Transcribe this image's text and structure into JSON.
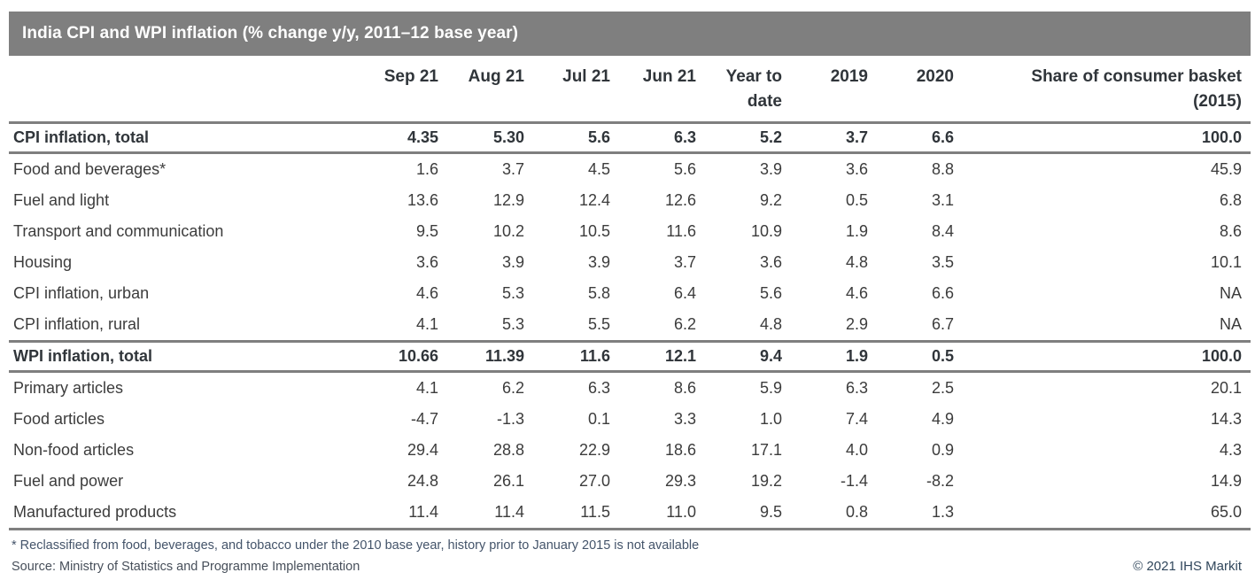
{
  "title": "India CPI and WPI inflation (% change y/y, 2011–12 base year)",
  "colors": {
    "title_bar": "#7f7f7f",
    "rule_line": "#7f7f7f",
    "body_text": "#3c3c3c",
    "footnote_text": "#44546a",
    "copyright_text": "#31475c"
  },
  "chart_data": {
    "type": "table",
    "title": "India CPI and WPI inflation (% change y/y, 2011–12 base year)",
    "header_lines": [
      [
        "Sep 21"
      ],
      [
        "Aug 21"
      ],
      [
        "Jul 21"
      ],
      [
        "Jun 21"
      ],
      [
        "Year to",
        "date"
      ],
      [
        "2019"
      ],
      [
        "2020"
      ],
      [
        "Share of consumer basket",
        "(2015)"
      ]
    ],
    "columns": [
      "Sep 21",
      "Aug 21",
      "Jul 21",
      "Jun 21",
      "Year to date",
      "2019",
      "2020",
      "Share of consumer basket (2015)"
    ],
    "rows": [
      {
        "label": "CPI inflation, total",
        "emphasis": true,
        "values": [
          "4.35",
          "5.30",
          "5.6",
          "6.3",
          "5.2",
          "3.7",
          "6.6",
          "100.0"
        ]
      },
      {
        "label": "Food and beverages*",
        "emphasis": false,
        "values": [
          "1.6",
          "3.7",
          "4.5",
          "5.6",
          "3.9",
          "3.6",
          "8.8",
          "45.9"
        ]
      },
      {
        "label": "Fuel and light",
        "emphasis": false,
        "values": [
          "13.6",
          "12.9",
          "12.4",
          "12.6",
          "9.2",
          "0.5",
          "3.1",
          "6.8"
        ]
      },
      {
        "label": "Transport and communication",
        "emphasis": false,
        "values": [
          "9.5",
          "10.2",
          "10.5",
          "11.6",
          "10.9",
          "1.9",
          "8.4",
          "8.6"
        ]
      },
      {
        "label": "Housing",
        "emphasis": false,
        "values": [
          "3.6",
          "3.9",
          "3.9",
          "3.7",
          "3.6",
          "4.8",
          "3.5",
          "10.1"
        ]
      },
      {
        "label": "CPI inflation, urban",
        "emphasis": false,
        "values": [
          "4.6",
          "5.3",
          "5.8",
          "6.4",
          "5.6",
          "4.6",
          "6.6",
          "NA"
        ]
      },
      {
        "label": "CPI inflation, rural",
        "emphasis": false,
        "values": [
          "4.1",
          "5.3",
          "5.5",
          "6.2",
          "4.8",
          "2.9",
          "6.7",
          "NA"
        ]
      },
      {
        "label": "WPI inflation, total",
        "emphasis": true,
        "values": [
          "10.66",
          "11.39",
          "11.6",
          "12.1",
          "9.4",
          "1.9",
          "0.5",
          "100.0"
        ]
      },
      {
        "label": "Primary articles",
        "emphasis": false,
        "values": [
          "4.1",
          "6.2",
          "6.3",
          "8.6",
          "5.9",
          "6.3",
          "2.5",
          "20.1"
        ]
      },
      {
        "label": "Food articles",
        "emphasis": false,
        "values": [
          "-4.7",
          "-1.3",
          "0.1",
          "3.3",
          "1.0",
          "7.4",
          "4.9",
          "14.3"
        ]
      },
      {
        "label": "Non-food articles",
        "emphasis": false,
        "values": [
          "29.4",
          "28.8",
          "22.9",
          "18.6",
          "17.1",
          "4.0",
          "0.9",
          "4.3"
        ]
      },
      {
        "label": "Fuel and power",
        "emphasis": false,
        "values": [
          "24.8",
          "26.1",
          "27.0",
          "29.3",
          "19.2",
          "-1.4",
          "-8.2",
          "14.9"
        ]
      },
      {
        "label": "Manufactured products",
        "emphasis": false,
        "values": [
          "11.4",
          "11.4",
          "11.5",
          "11.0",
          "9.5",
          "0.8",
          "1.3",
          "65.0"
        ]
      }
    ]
  },
  "footnotes": {
    "reclassified": "* Reclassified from food, beverages, and tobacco under the 2010 base year, history prior to January 2015 is not available",
    "source": "Source: Ministry of Statistics and Programme Implementation",
    "copyright": "© 2021 IHS Markit"
  }
}
